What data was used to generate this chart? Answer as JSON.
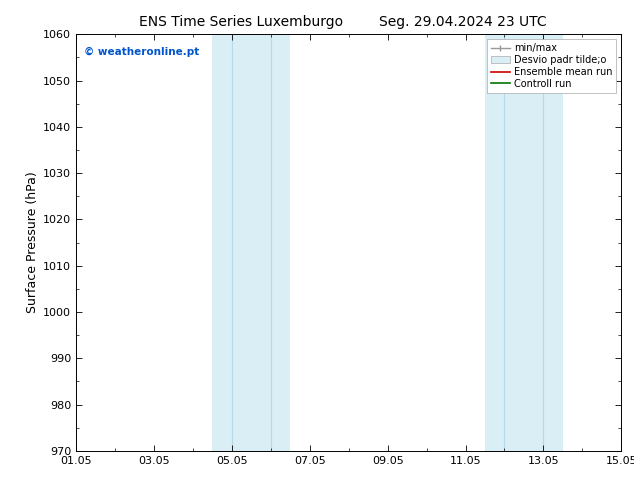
{
  "title_left": "ENS Time Series Luxemburgo",
  "title_right": "Seg. 29.04.2024 23 UTC",
  "ylabel": "Surface Pressure (hPa)",
  "ylim": [
    970,
    1060
  ],
  "yticks": [
    970,
    980,
    990,
    1000,
    1010,
    1020,
    1030,
    1040,
    1050,
    1060
  ],
  "xtick_labels": [
    "01.05",
    "03.05",
    "05.05",
    "07.05",
    "09.05",
    "11.05",
    "13.05",
    "15.05"
  ],
  "xtick_positions": [
    0,
    2,
    4,
    6,
    8,
    10,
    12,
    14
  ],
  "xlim": [
    0,
    14
  ],
  "shaded_bands": [
    {
      "x_start": 3.5,
      "x_end": 5.5,
      "color": "#daeef5"
    },
    {
      "x_start": 10.5,
      "x_end": 12.5,
      "color": "#daeef5"
    }
  ],
  "shade_lines": [
    {
      "x": 4.0,
      "color": "#b8d8e8"
    },
    {
      "x": 5.0,
      "color": "#b8d8e8"
    },
    {
      "x": 11.0,
      "color": "#b8d8e8"
    },
    {
      "x": 12.0,
      "color": "#b8d8e8"
    }
  ],
  "watermark": "© weatheronline.pt",
  "watermark_color": "#0055cc",
  "legend_entries": [
    "min/max",
    "Desvio padr tilde;o",
    "Ensemble mean run",
    "Controll run"
  ],
  "legend_colors": [
    "#aaaaaa",
    "#ccddee",
    "#ff0000",
    "#007700"
  ],
  "bg_color": "#ffffff",
  "plot_bg_color": "#ffffff",
  "title_fontsize": 10,
  "tick_fontsize": 8,
  "ylabel_fontsize": 9
}
